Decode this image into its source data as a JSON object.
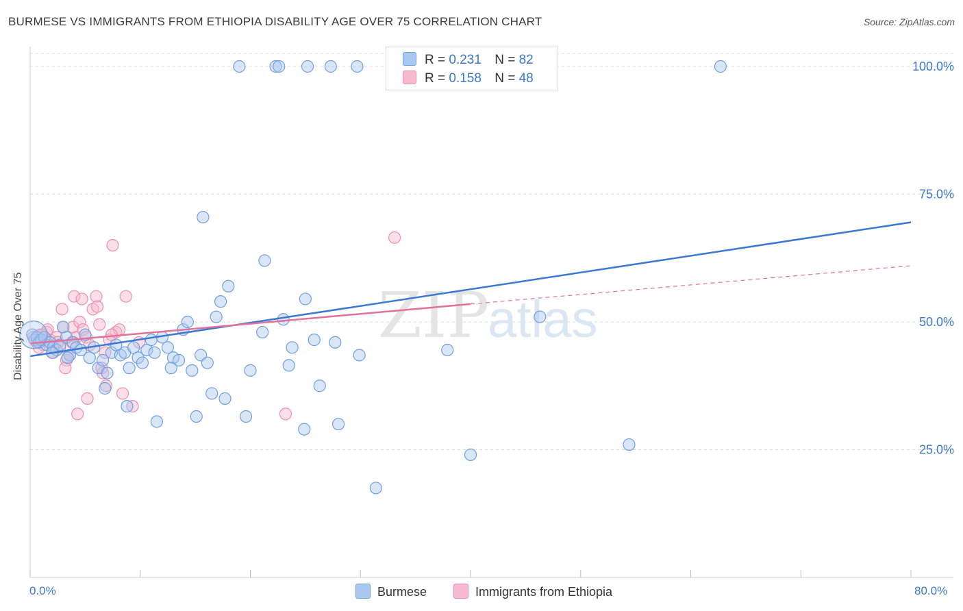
{
  "header": {
    "title": "BURMESE VS IMMIGRANTS FROM ETHIOPIA DISABILITY AGE OVER 75 CORRELATION CHART",
    "source": "Source: ZipAtlas.com"
  },
  "legend": {
    "items": [
      {
        "r_label": "R =",
        "r_value": "0.231",
        "n_label": "N =",
        "n_value": "82"
      },
      {
        "r_label": "R =",
        "r_value": "0.158",
        "n_label": "N =",
        "n_value": "48"
      }
    ]
  },
  "colors": {
    "blue_fill": "#a9c8f0",
    "blue_stroke": "#6f9fe0",
    "blue_line": "#3a78d4",
    "pink_fill": "#f7b9cd",
    "pink_stroke": "#ea8fad",
    "pink_line": "#e2709a",
    "accent_text": "#3b78c9",
    "grid": "#d8d8d8"
  },
  "watermark": {
    "part1": "ZIP",
    "part2": "atlas"
  },
  "chart_data": {
    "type": "scatter",
    "title": "BURMESE VS IMMIGRANTS FROM ETHIOPIA DISABILITY AGE OVER 75 CORRELATION CHART",
    "xlabel": "",
    "ylabel": "Disability Age Over 75",
    "xlim": [
      0,
      80
    ],
    "ylim": [
      0,
      105
    ],
    "x_tick_labels": {
      "min": "0.0%",
      "max": "80.0%"
    },
    "y_ticks": [
      {
        "value": 25,
        "label": "25.0%"
      },
      {
        "value": 50,
        "label": "50.0%"
      },
      {
        "value": 75,
        "label": "75.0%"
      },
      {
        "value": 100,
        "label": "100.0%"
      }
    ],
    "grid": true,
    "series": [
      {
        "name": "Burmese",
        "r": 0.231,
        "n": 82,
        "trend": {
          "x0": 0,
          "y0": 43.3,
          "x1": 80,
          "y1": 69.5,
          "dashed_to": null
        },
        "points": [
          [
            0.2,
            47.5
          ],
          [
            0.4,
            46.5
          ],
          [
            0.6,
            47
          ],
          [
            0.8,
            46
          ],
          [
            1.0,
            46.5
          ],
          [
            1.3,
            47
          ],
          [
            1.5,
            45.5
          ],
          [
            1.8,
            46
          ],
          [
            2.1,
            45
          ],
          [
            2.4,
            44.5
          ],
          [
            2.7,
            45.5
          ],
          [
            3.0,
            49
          ],
          [
            3.3,
            47
          ],
          [
            3.6,
            43.5
          ],
          [
            3.9,
            46
          ],
          [
            4.2,
            45
          ],
          [
            4.6,
            44.5
          ],
          [
            5.0,
            47.5
          ],
          [
            5.4,
            43
          ],
          [
            5.8,
            45
          ],
          [
            6.2,
            41
          ],
          [
            6.6,
            42.5
          ],
          [
            7.0,
            40
          ],
          [
            7.4,
            44
          ],
          [
            7.8,
            45.5
          ],
          [
            8.2,
            43.5
          ],
          [
            8.6,
            44
          ],
          [
            9.0,
            41
          ],
          [
            9.4,
            45
          ],
          [
            9.8,
            43
          ],
          [
            10.2,
            42
          ],
          [
            10.6,
            44.5
          ],
          [
            11.0,
            46.5
          ],
          [
            11.3,
            44
          ],
          [
            12.0,
            47
          ],
          [
            12.5,
            45
          ],
          [
            13.0,
            43
          ],
          [
            13.5,
            42.5
          ],
          [
            13.9,
            48.5
          ],
          [
            14.3,
            50
          ],
          [
            14.7,
            40.5
          ],
          [
            15.1,
            31.5
          ],
          [
            15.5,
            43.5
          ],
          [
            15.7,
            70.5
          ],
          [
            16.1,
            42
          ],
          [
            16.5,
            36
          ],
          [
            16.9,
            51
          ],
          [
            17.3,
            54
          ],
          [
            17.7,
            35
          ],
          [
            18.0,
            57
          ],
          [
            19.6,
            31.5
          ],
          [
            20.0,
            40.5
          ],
          [
            21.1,
            48
          ],
          [
            21.3,
            62
          ],
          [
            19.0,
            100
          ],
          [
            22.3,
            100
          ],
          [
            22.6,
            100
          ],
          [
            23.5,
            41.5
          ],
          [
            23.8,
            45
          ],
          [
            24.9,
            29
          ],
          [
            25.0,
            54.5
          ],
          [
            25.2,
            100
          ],
          [
            25.8,
            46.5
          ],
          [
            26.3,
            37.5
          ],
          [
            27.3,
            100
          ],
          [
            27.7,
            46
          ],
          [
            28.0,
            30
          ],
          [
            29.7,
            100
          ],
          [
            29.9,
            43.5
          ],
          [
            31.4,
            17.5
          ],
          [
            37.9,
            44.5
          ],
          [
            40.0,
            24
          ],
          [
            46.3,
            51
          ],
          [
            54.4,
            26
          ],
          [
            62.7,
            100
          ],
          [
            23.0,
            50.5
          ],
          [
            11.5,
            30.5
          ],
          [
            8.8,
            33.5
          ],
          [
            6.8,
            37
          ],
          [
            12.8,
            41
          ],
          [
            2.0,
            44
          ],
          [
            3.4,
            43
          ]
        ]
      },
      {
        "name": "Immigrants from Ethiopia",
        "r": 0.158,
        "n": 48,
        "trend": {
          "x0": 0,
          "y0": 45.8,
          "x1": 40,
          "y1": 53.5,
          "dashed_to": {
            "x": 80,
            "y": 61
          }
        },
        "points": [
          [
            0.3,
            47
          ],
          [
            0.6,
            46
          ],
          [
            0.9,
            47.5
          ],
          [
            1.2,
            45.5
          ],
          [
            1.5,
            48
          ],
          [
            1.8,
            46.5
          ],
          [
            2.1,
            44
          ],
          [
            2.4,
            47
          ],
          [
            2.7,
            45
          ],
          [
            3.0,
            49
          ],
          [
            3.3,
            42.5
          ],
          [
            3.6,
            43.5
          ],
          [
            3.9,
            49
          ],
          [
            4.2,
            47
          ],
          [
            4.5,
            50
          ],
          [
            4.8,
            48.5
          ],
          [
            5.1,
            47
          ],
          [
            5.4,
            45.5
          ],
          [
            5.7,
            52.5
          ],
          [
            6.0,
            55
          ],
          [
            6.3,
            49.5
          ],
          [
            6.6,
            40
          ],
          [
            6.9,
            37.5
          ],
          [
            7.2,
            46.5
          ],
          [
            7.5,
            65
          ],
          [
            7.8,
            48
          ],
          [
            8.1,
            48.5
          ],
          [
            8.4,
            36
          ],
          [
            8.7,
            55
          ],
          [
            9.3,
            33.5
          ],
          [
            3.2,
            41
          ],
          [
            4.0,
            55
          ],
          [
            4.3,
            32
          ],
          [
            5.2,
            35
          ],
          [
            6.1,
            53
          ],
          [
            6.5,
            41
          ],
          [
            7.4,
            47.5
          ],
          [
            2.9,
            52.5
          ],
          [
            1.6,
            48.5
          ],
          [
            2.5,
            46
          ],
          [
            3.8,
            46
          ],
          [
            4.7,
            54.5
          ],
          [
            6.8,
            44
          ],
          [
            9.9,
            46
          ],
          [
            23.2,
            32
          ],
          [
            33.1,
            66.5
          ],
          [
            0.8,
            45
          ],
          [
            1.1,
            47.5
          ]
        ]
      }
    ]
  }
}
